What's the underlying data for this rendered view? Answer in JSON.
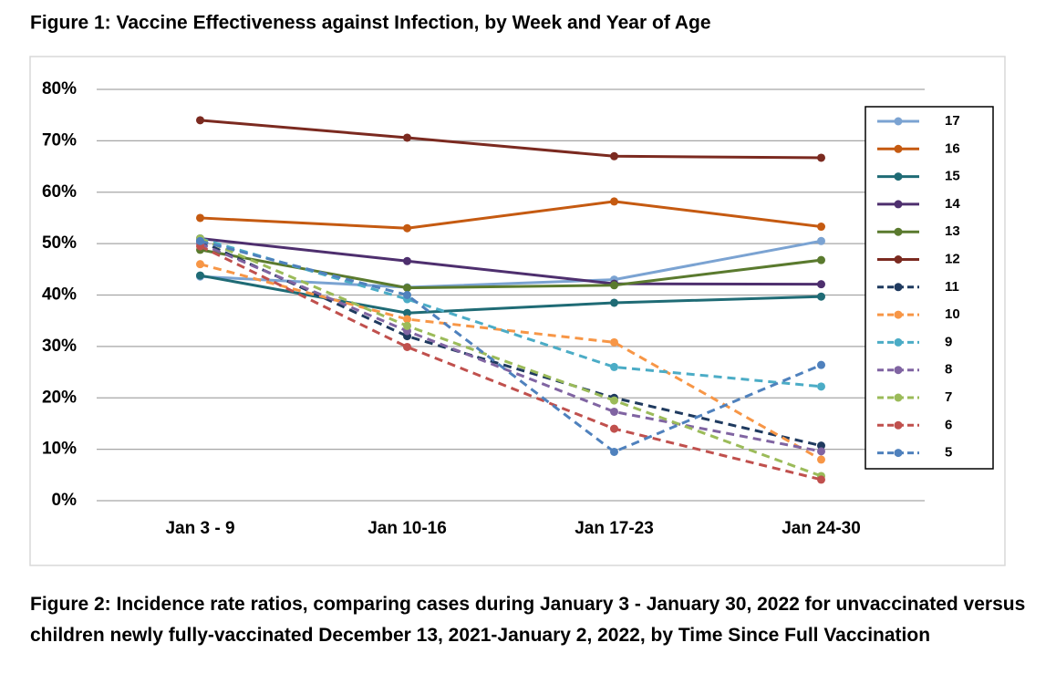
{
  "chart_data": {
    "type": "line",
    "title": "Figure 1: Vaccine Effectiveness against Infection, by Week and Year of Age",
    "caption": "Figure 2:  Incidence rate ratios, comparing cases during January 3 - January 30, 2022 for unvaccinated versus children newly fully-vaccinated December 13, 2021-January 2, 2022, by Time Since Full Vaccination",
    "categories": [
      "Jan 3 - 9",
      "Jan 10-16",
      "Jan 17-23",
      "Jan 24-30"
    ],
    "ylim": [
      0,
      80
    ],
    "yticks": [
      {
        "value": 0,
        "label": "0%"
      },
      {
        "value": 10,
        "label": "10%"
      },
      {
        "value": 20,
        "label": "20%"
      },
      {
        "value": 30,
        "label": "30%"
      },
      {
        "value": 40,
        "label": "40%"
      },
      {
        "value": 50,
        "label": "50%"
      },
      {
        "value": 60,
        "label": "60%"
      },
      {
        "value": 70,
        "label": "70%"
      },
      {
        "value": 80,
        "label": "80%"
      }
    ],
    "grid": true,
    "legend": "right",
    "series": [
      {
        "name": "17",
        "color": "#7ba3d2",
        "dashed": false,
        "values": [
          43.6,
          41.5,
          43,
          50.5
        ]
      },
      {
        "name": "16",
        "color": "#c55a11",
        "dashed": false,
        "values": [
          55,
          53,
          58.2,
          53.3
        ]
      },
      {
        "name": "15",
        "color": "#1f6b75",
        "dashed": false,
        "values": [
          43.8,
          36.5,
          38.5,
          39.7
        ]
      },
      {
        "name": "14",
        "color": "#4e2f6e",
        "dashed": false,
        "values": [
          51,
          46.6,
          42.2,
          42.1
        ]
      },
      {
        "name": "13",
        "color": "#5a7a2e",
        "dashed": false,
        "values": [
          48.8,
          41.4,
          41.9,
          46.8
        ]
      },
      {
        "name": "12",
        "color": "#7b2a20",
        "dashed": false,
        "values": [
          74,
          70.6,
          67,
          66.7
        ]
      },
      {
        "name": "11",
        "color": "#1f3a5f",
        "dashed": true,
        "values": [
          50.5,
          32,
          20,
          10.7
        ]
      },
      {
        "name": "10",
        "color": "#f79646",
        "dashed": true,
        "values": [
          46,
          35.3,
          30.8,
          8
        ]
      },
      {
        "name": "9",
        "color": "#4bacc6",
        "dashed": true,
        "values": [
          51,
          39.2,
          26,
          22.2
        ]
      },
      {
        "name": "8",
        "color": "#8064a2",
        "dashed": true,
        "values": [
          50,
          33,
          17.3,
          9.6
        ]
      },
      {
        "name": "7",
        "color": "#9bbb59",
        "dashed": true,
        "values": [
          51,
          34,
          19.5,
          4.8
        ]
      },
      {
        "name": "6",
        "color": "#c0504d",
        "dashed": true,
        "values": [
          49.5,
          29.9,
          14,
          4.1
        ]
      },
      {
        "name": "5",
        "color": "#4f81bd",
        "dashed": true,
        "values": [
          50.5,
          40,
          9.5,
          26.4
        ]
      }
    ]
  }
}
